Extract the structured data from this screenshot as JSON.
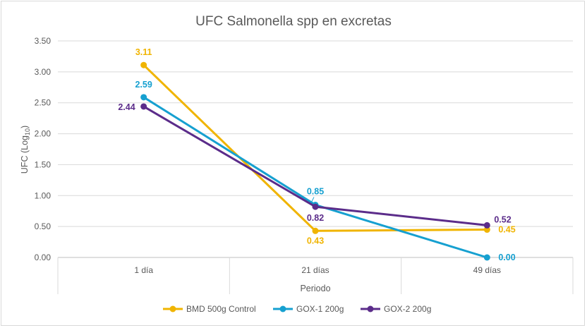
{
  "chart_data": {
    "type": "line",
    "title": "UFC Salmonella spp en excretas",
    "xlabel": "Periodo",
    "ylabel_main": "UFC (Log",
    "ylabel_sub": "10",
    "ylabel_close": ")",
    "categories": [
      "1 día",
      "21 días",
      "49 días"
    ],
    "ylim": [
      0,
      3.5
    ],
    "yticks": [
      "0.00",
      "0.50",
      "1.00",
      "1.50",
      "2.00",
      "2.50",
      "3.00",
      "3.50"
    ],
    "grid": true,
    "legend_position": "bottom",
    "series": [
      {
        "name": "BMD 500g Control",
        "color": "#F0B400",
        "values": [
          3.11,
          0.43,
          0.45
        ],
        "labels": [
          "3.11",
          "0.43",
          "0.45"
        ]
      },
      {
        "name": "GOX-1 200g",
        "color": "#16A0D0",
        "values": [
          2.59,
          0.85,
          0.0
        ],
        "labels": [
          "2.59",
          "0.85",
          "0.00"
        ]
      },
      {
        "name": "GOX-2 200g",
        "color": "#5B2C8A",
        "values": [
          2.44,
          0.82,
          0.52
        ],
        "labels": [
          "2.44",
          "0.82",
          "0.52"
        ]
      }
    ]
  }
}
